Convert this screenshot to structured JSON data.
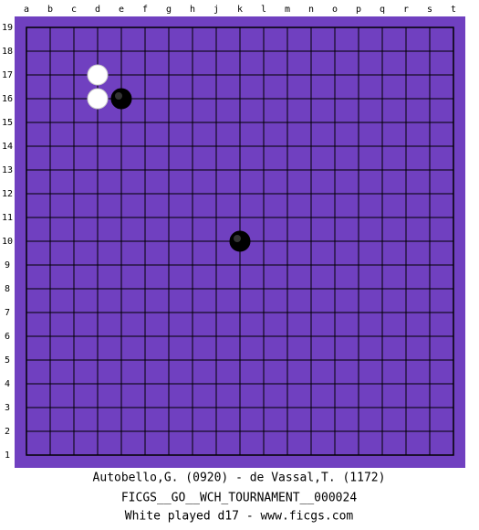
{
  "board": {
    "columns": [
      "a",
      "b",
      "c",
      "d",
      "e",
      "f",
      "g",
      "h",
      "j",
      "k",
      "l",
      "m",
      "n",
      "o",
      "p",
      "q",
      "r",
      "s",
      "t"
    ],
    "rows": [
      19,
      18,
      17,
      16,
      15,
      14,
      13,
      12,
      11,
      10,
      9,
      8,
      7,
      6,
      5,
      4,
      3,
      2,
      1
    ],
    "stones": [
      {
        "color": "white",
        "point": "d17"
      },
      {
        "color": "white",
        "point": "d16"
      },
      {
        "color": "black",
        "point": "e16"
      },
      {
        "color": "black",
        "point": "k10"
      }
    ]
  },
  "footer": {
    "lines": [
      "Autobello,G. (0920) - de Vassal,T. (1172)",
      "FICGS__GO__WCH_TOURNAMENT__000024",
      "White played d17 - www.ficgs.com"
    ]
  }
}
